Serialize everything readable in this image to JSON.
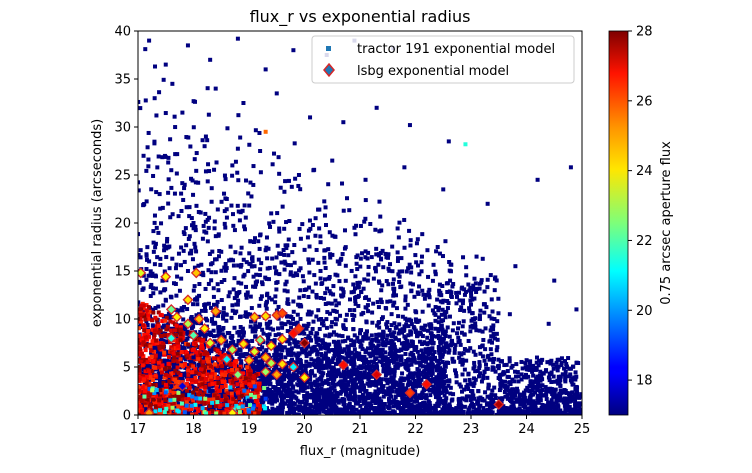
{
  "chart_data": {
    "type": "scatter",
    "title": "flux_r vs exponential radius",
    "xlabel": "flux_r (magnitude)",
    "ylabel": "exponential radius (arcseconds)",
    "xlim": [
      17,
      25
    ],
    "ylim": [
      0,
      40
    ],
    "xticks": [
      "17",
      "18",
      "19",
      "20",
      "21",
      "22",
      "23",
      "24",
      "25"
    ],
    "yticks": [
      "0",
      "5",
      "10",
      "15",
      "20",
      "25",
      "30",
      "35",
      "40"
    ],
    "grid": false,
    "legend_position": "top-right",
    "colorbar": {
      "label": "0.75 arcsec aperture flux",
      "range": [
        17,
        28
      ],
      "ticks": [
        "18",
        "20",
        "22",
        "24",
        "26",
        "28"
      ],
      "colormap": "jet"
    },
    "series": [
      {
        "name": "tractor 191 exponential model",
        "marker": "square",
        "note_color_values": "colored by aperture flux, mostly at low end of scale",
        "points": [
          [
            17.2,
            39.0
          ],
          [
            17.5,
            36.5
          ],
          [
            17.9,
            38.5
          ],
          [
            18.3,
            37.0
          ],
          [
            18.8,
            39.2
          ],
          [
            19.3,
            36.0
          ],
          [
            19.8,
            38.0
          ],
          [
            20.4,
            37.5
          ],
          [
            20.9,
            39.0
          ],
          [
            21.6,
            38.2
          ],
          [
            17.3,
            33.0
          ],
          [
            17.8,
            31.5
          ],
          [
            18.4,
            34.0
          ],
          [
            18.9,
            32.5
          ],
          [
            19.5,
            33.5
          ],
          [
            20.1,
            31.0
          ],
          [
            20.7,
            30.5
          ],
          [
            21.3,
            32.0
          ],
          [
            21.9,
            30.2
          ],
          [
            22.6,
            28.5
          ],
          [
            17.1,
            27.0
          ],
          [
            17.6,
            25.5
          ],
          [
            18.2,
            28.0
          ],
          [
            18.7,
            26.0
          ],
          [
            19.2,
            27.5
          ],
          [
            19.9,
            25.0
          ],
          [
            20.5,
            26.5
          ],
          [
            21.1,
            24.5
          ],
          [
            21.8,
            25.8
          ],
          [
            22.5,
            23.5
          ],
          [
            23.3,
            22.0
          ],
          [
            24.2,
            24.5
          ],
          [
            24.8,
            25.8
          ],
          [
            17.4,
            21.5
          ],
          [
            18.0,
            20.0
          ],
          [
            18.6,
            22.5
          ],
          [
            19.4,
            21.0
          ],
          [
            20.2,
            20.5
          ],
          [
            20.9,
            19.5
          ],
          [
            21.7,
            18.5
          ],
          [
            22.4,
            17.5
          ],
          [
            23.1,
            16.5
          ],
          [
            23.8,
            15.5
          ],
          [
            24.5,
            14.0
          ],
          [
            17.2,
            16.0
          ],
          [
            17.9,
            15.0
          ],
          [
            18.5,
            17.0
          ],
          [
            19.1,
            15.5
          ],
          [
            19.8,
            14.5
          ],
          [
            20.6,
            16.0
          ],
          [
            21.4,
            13.5
          ],
          [
            22.2,
            12.5
          ],
          [
            23.0,
            11.5
          ],
          [
            23.7,
            10.5
          ],
          [
            24.4,
            9.5
          ],
          [
            24.9,
            11.0
          ],
          [
            17.5,
            12.0
          ],
          [
            18.1,
            10.5
          ],
          [
            18.8,
            11.5
          ],
          [
            19.6,
            9.5
          ],
          [
            20.3,
            10.0
          ],
          [
            21.0,
            8.5
          ],
          [
            21.8,
            7.5
          ],
          [
            22.6,
            6.5
          ],
          [
            23.4,
            5.5
          ],
          [
            24.1,
            4.5
          ],
          [
            24.7,
            3.5
          ],
          [
            17.3,
            7.0
          ],
          [
            18.0,
            6.0
          ],
          [
            18.7,
            7.5
          ],
          [
            19.4,
            5.5
          ],
          [
            20.1,
            6.5
          ],
          [
            20.8,
            4.5
          ],
          [
            21.5,
            5.0
          ],
          [
            22.3,
            3.5
          ],
          [
            23.0,
            2.5
          ],
          [
            23.8,
            2.0
          ],
          [
            24.6,
            1.5
          ],
          [
            17.6,
            3.0
          ],
          [
            18.3,
            2.5
          ],
          [
            19.0,
            1.5
          ],
          [
            19.7,
            3.0
          ],
          [
            20.4,
            2.0
          ],
          [
            21.2,
            1.0
          ],
          [
            22.0,
            1.8
          ],
          [
            22.8,
            0.8
          ],
          [
            23.6,
            0.6
          ],
          [
            24.3,
            0.9
          ],
          [
            22.9,
            28.2
          ],
          [
            19.3,
            29.5
          ]
        ]
      },
      {
        "name": "lsbg exponential model",
        "marker": "diamond",
        "edgecolor": "#d62728",
        "points": [
          [
            17.05,
            14.8
          ],
          [
            17.5,
            14.4
          ],
          [
            18.05,
            14.8
          ],
          [
            17.9,
            12.0
          ],
          [
            17.6,
            11.0
          ],
          [
            17.7,
            10.2
          ],
          [
            17.9,
            9.5
          ],
          [
            18.1,
            10.0
          ],
          [
            18.2,
            9.0
          ],
          [
            18.4,
            10.8
          ],
          [
            17.6,
            8.0
          ],
          [
            18.0,
            8.3
          ],
          [
            18.3,
            7.5
          ],
          [
            18.5,
            7.8
          ],
          [
            18.7,
            6.8
          ],
          [
            18.9,
            7.4
          ],
          [
            19.1,
            10.2
          ],
          [
            19.3,
            10.3
          ],
          [
            19.5,
            10.4
          ],
          [
            19.6,
            10.6
          ],
          [
            19.9,
            9.0
          ],
          [
            19.8,
            8.5
          ],
          [
            20.0,
            7.5
          ],
          [
            19.2,
            7.8
          ],
          [
            19.4,
            7.2
          ],
          [
            19.6,
            7.9
          ],
          [
            19.1,
            6.6
          ],
          [
            19.3,
            6.0
          ],
          [
            19.0,
            5.7
          ],
          [
            19.4,
            5.4
          ],
          [
            19.6,
            5.3
          ],
          [
            19.8,
            5.0
          ],
          [
            18.6,
            5.8
          ],
          [
            18.8,
            4.2
          ],
          [
            19.3,
            4.5
          ],
          [
            19.5,
            4.2
          ],
          [
            20.0,
            3.9
          ],
          [
            20.7,
            5.2
          ],
          [
            21.3,
            4.2
          ],
          [
            21.9,
            2.3
          ],
          [
            22.2,
            3.2
          ],
          [
            23.5,
            1.1
          ],
          [
            17.8,
            3.0
          ],
          [
            17.2,
            0.2
          ],
          [
            18.7,
            0.2
          ]
        ]
      }
    ]
  }
}
